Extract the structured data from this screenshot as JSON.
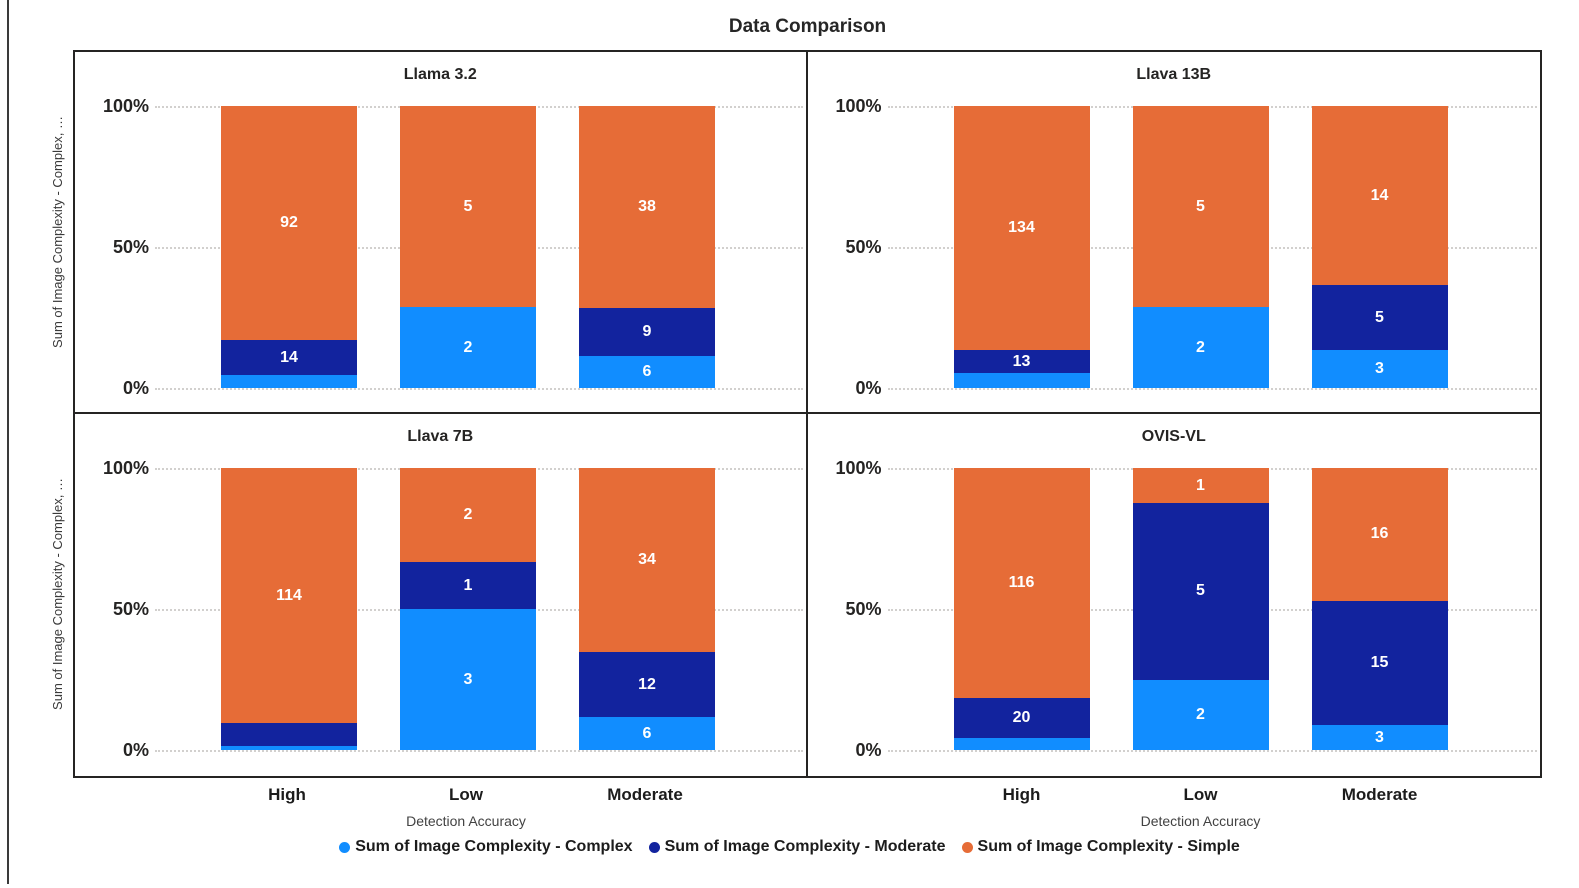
{
  "page_title": "Data Comparison",
  "y_axis_title": "Sum of Image Complexity - Complex, …",
  "x_axis_title": "Detection Accuracy",
  "y_ticks": [
    "100%",
    "50%",
    "0%"
  ],
  "categories": [
    "High",
    "Low",
    "Moderate"
  ],
  "colors": {
    "complex": "#118DFF",
    "moderate": "#12239E",
    "simple": "#E66C37",
    "grid": "#D2D0CE",
    "frame": "#252423"
  },
  "legend": [
    {
      "series": "complex",
      "label": "Sum of Image Complexity - Complex"
    },
    {
      "series": "moderate",
      "label": "Sum of Image Complexity - Moderate"
    },
    {
      "series": "simple",
      "label": "Sum of Image Complexity - Simple"
    }
  ],
  "chart_data": {
    "type": "bar",
    "variant": "100%-stacked-small-multiples",
    "title": "Data Comparison",
    "xlabel": "Detection Accuracy",
    "ylabel": "Sum of Image Complexity - Complex, …",
    "ylim": [
      "0%",
      "100%"
    ],
    "grid": "horizontal dotted at 0%, 50%, 100%",
    "legend_position": "bottom",
    "categories": [
      "High",
      "Low",
      "Moderate"
    ],
    "series_names": [
      "Sum of Image Complexity - Complex",
      "Sum of Image Complexity - Moderate",
      "Sum of Image Complexity - Simple"
    ],
    "panels": [
      {
        "title": "Llama 3.2",
        "bars": [
          {
            "category": "High",
            "segments": [
              {
                "series": "complex",
                "value": 5,
                "label_visible": false,
                "estimated": true
              },
              {
                "series": "moderate",
                "value": 14,
                "label_visible": true
              },
              {
                "series": "simple",
                "value": 92,
                "label_visible": true
              }
            ]
          },
          {
            "category": "Low",
            "segments": [
              {
                "series": "complex",
                "value": 2,
                "label_visible": true
              },
              {
                "series": "simple",
                "value": 5,
                "label_visible": true
              }
            ]
          },
          {
            "category": "Moderate",
            "segments": [
              {
                "series": "complex",
                "value": 6,
                "label_visible": true
              },
              {
                "series": "moderate",
                "value": 9,
                "label_visible": true
              },
              {
                "series": "simple",
                "value": 38,
                "label_visible": true
              }
            ]
          }
        ]
      },
      {
        "title": "Llava 13B",
        "bars": [
          {
            "category": "High",
            "segments": [
              {
                "series": "complex",
                "value": 8,
                "label_visible": false,
                "estimated": true
              },
              {
                "series": "moderate",
                "value": 13,
                "label_visible": true
              },
              {
                "series": "simple",
                "value": 134,
                "label_visible": true
              }
            ]
          },
          {
            "category": "Low",
            "segments": [
              {
                "series": "complex",
                "value": 2,
                "label_visible": true
              },
              {
                "series": "simple",
                "value": 5,
                "label_visible": true
              }
            ]
          },
          {
            "category": "Moderate",
            "segments": [
              {
                "series": "complex",
                "value": 3,
                "label_visible": true
              },
              {
                "series": "moderate",
                "value": 5,
                "label_visible": true
              },
              {
                "series": "simple",
                "value": 14,
                "label_visible": true
              }
            ]
          }
        ]
      },
      {
        "title": "Llava 7B",
        "bars": [
          {
            "category": "High",
            "segments": [
              {
                "series": "complex",
                "value": 2,
                "label_visible": false,
                "estimated": true
              },
              {
                "series": "moderate",
                "value": 10,
                "label_visible": false,
                "estimated": true
              },
              {
                "series": "simple",
                "value": 114,
                "label_visible": true
              }
            ]
          },
          {
            "category": "Low",
            "segments": [
              {
                "series": "complex",
                "value": 3,
                "label_visible": true
              },
              {
                "series": "moderate",
                "value": 1,
                "label_visible": true
              },
              {
                "series": "simple",
                "value": 2,
                "label_visible": true
              }
            ]
          },
          {
            "category": "Moderate",
            "segments": [
              {
                "series": "complex",
                "value": 6,
                "label_visible": true
              },
              {
                "series": "moderate",
                "value": 12,
                "label_visible": true
              },
              {
                "series": "simple",
                "value": 34,
                "label_visible": true
              }
            ]
          }
        ]
      },
      {
        "title": "OVIS-VL",
        "bars": [
          {
            "category": "High",
            "segments": [
              {
                "series": "complex",
                "value": 6,
                "label_visible": false,
                "estimated": true
              },
              {
                "series": "moderate",
                "value": 20,
                "label_visible": true
              },
              {
                "series": "simple",
                "value": 116,
                "label_visible": true
              }
            ]
          },
          {
            "category": "Low",
            "segments": [
              {
                "series": "complex",
                "value": 2,
                "label_visible": true
              },
              {
                "series": "moderate",
                "value": 5,
                "label_visible": true
              },
              {
                "series": "simple",
                "value": 1,
                "label_visible": true
              }
            ]
          },
          {
            "category": "Moderate",
            "segments": [
              {
                "series": "complex",
                "value": 3,
                "label_visible": true
              },
              {
                "series": "moderate",
                "value": 15,
                "label_visible": true
              },
              {
                "series": "simple",
                "value": 16,
                "label_visible": true
              }
            ]
          }
        ]
      }
    ]
  }
}
